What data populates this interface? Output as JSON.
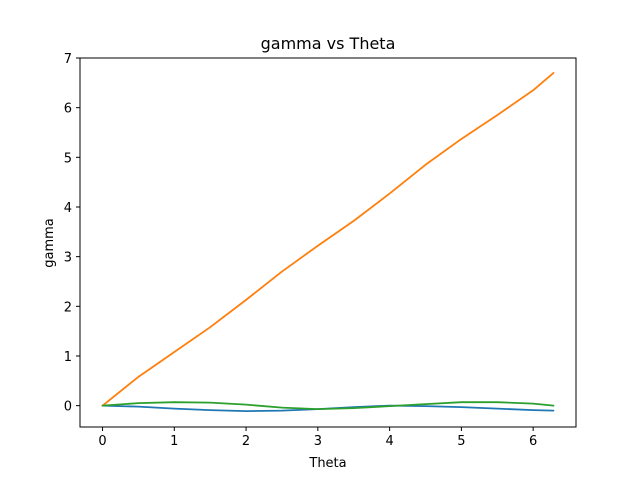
{
  "chart_data": {
    "type": "line",
    "title": "gamma vs Theta",
    "xlabel": "Theta",
    "ylabel": "gamma",
    "xlim": [
      -0.314,
      6.597
    ],
    "ylim": [
      -0.43,
      7.0
    ],
    "xticks": [
      0,
      1,
      2,
      3,
      4,
      5,
      6
    ],
    "yticks": [
      0,
      1,
      2,
      3,
      4,
      5,
      6,
      7
    ],
    "grid": false,
    "series": [
      {
        "color": "#1f77b4",
        "x": [
          0,
          0.5,
          1.0,
          1.5,
          2.0,
          2.5,
          3.0,
          3.5,
          4.0,
          4.5,
          5.0,
          5.5,
          6.0,
          6.2832
        ],
        "y": [
          0,
          -0.02,
          -0.06,
          -0.09,
          -0.11,
          -0.1,
          -0.07,
          -0.03,
          0.0,
          -0.01,
          -0.03,
          -0.06,
          -0.09,
          -0.1
        ]
      },
      {
        "color": "#ff7f0e",
        "x": [
          0,
          0.5,
          1.0,
          1.5,
          2.0,
          2.5,
          3.0,
          3.5,
          4.0,
          4.5,
          5.0,
          5.5,
          6.0,
          6.2832
        ],
        "y": [
          0,
          0.58,
          1.08,
          1.58,
          2.13,
          2.7,
          3.22,
          3.72,
          4.27,
          4.85,
          5.37,
          5.85,
          6.35,
          6.7
        ]
      },
      {
        "color": "#2ca02c",
        "x": [
          0,
          0.5,
          1.0,
          1.5,
          2.0,
          2.5,
          3.0,
          3.5,
          4.0,
          4.5,
          5.0,
          5.5,
          6.0,
          6.2832
        ],
        "y": [
          0,
          0.05,
          0.07,
          0.06,
          0.02,
          -0.04,
          -0.07,
          -0.05,
          -0.01,
          0.03,
          0.07,
          0.07,
          0.04,
          0.0
        ]
      }
    ]
  }
}
